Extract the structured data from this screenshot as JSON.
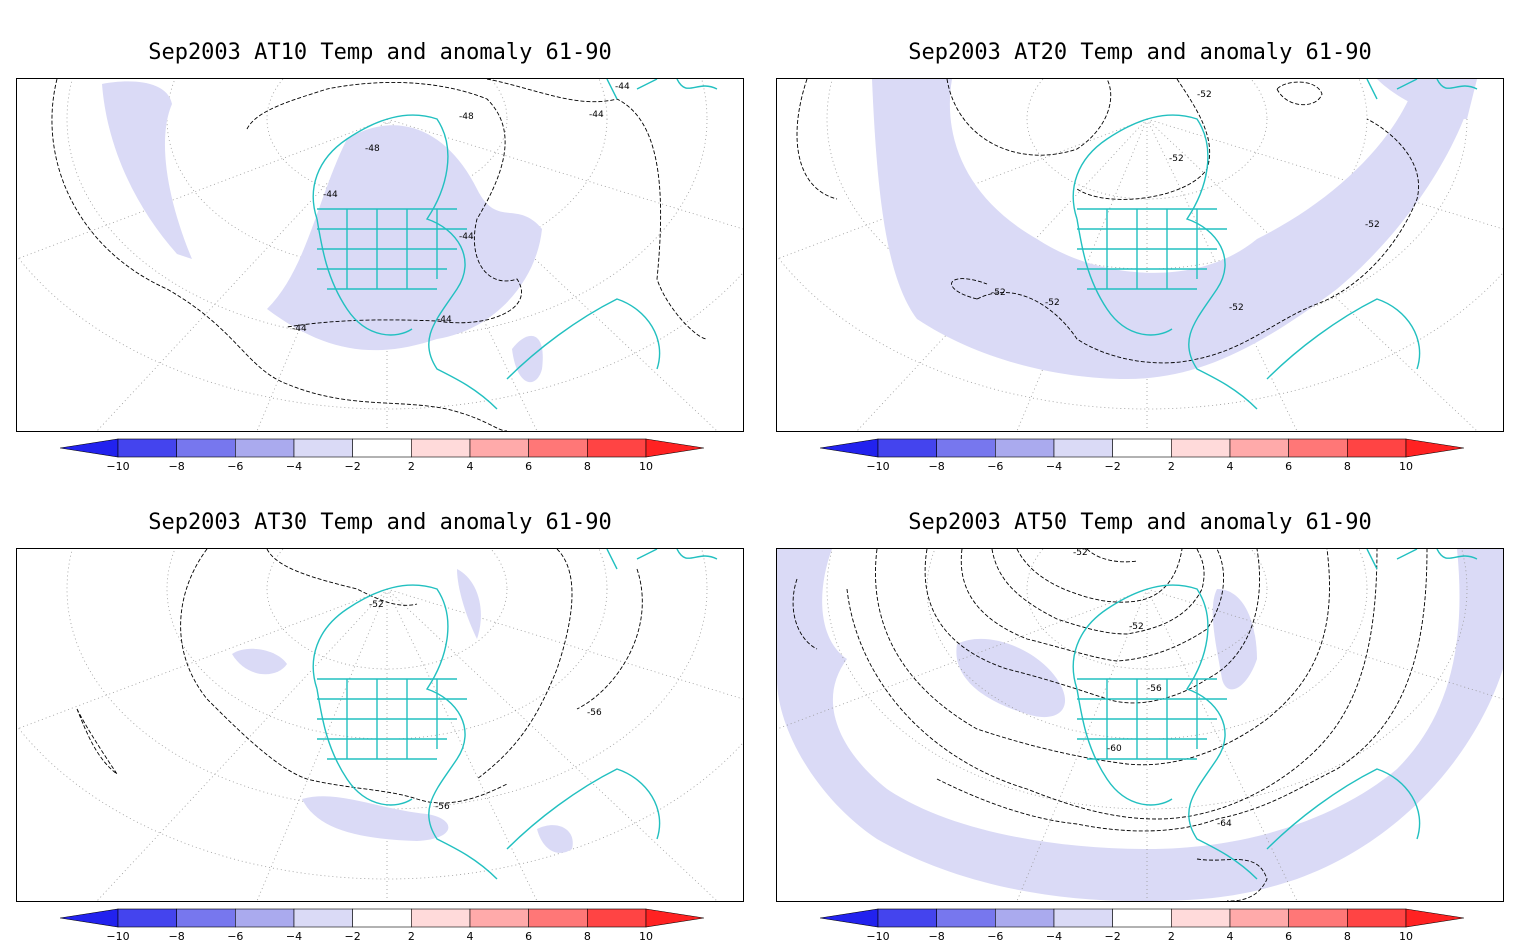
{
  "colorbar": {
    "ticks": [
      "−10",
      "−8",
      "−6",
      "−4",
      "−2",
      "2",
      "4",
      "6",
      "8",
      "10"
    ],
    "colors": [
      "#2222ee",
      "#4444ee",
      "#7777ee",
      "#aaaaee",
      "#dadaf6",
      "#ffffff",
      "#ffdada",
      "#ffaaaa",
      "#ff7777",
      "#ff4444",
      "#ff2222"
    ]
  },
  "panels": [
    {
      "title": "Sep2003 AT10 Temp and anomaly 61-90",
      "contour_labels": [
        "-48",
        "-48",
        "-44",
        "-44",
        "-44",
        "-44",
        "-44",
        "-44"
      ]
    },
    {
      "title": "Sep2003 AT20 Temp and anomaly 61-90",
      "contour_labels": [
        "-52",
        "-52",
        "-52",
        "-52",
        "-52",
        "-52"
      ]
    },
    {
      "title": "Sep2003 AT30 Temp and anomaly 61-90",
      "contour_labels": [
        "-52",
        "-56",
        "-56"
      ]
    },
    {
      "title": "Sep2003 AT50 Temp and anomaly 61-90",
      "contour_labels": [
        "-52",
        "-52",
        "-56",
        "-60",
        "-64"
      ]
    }
  ],
  "style": {
    "coast_color": "#22c0c0",
    "anomaly_fill": "#dadaf6",
    "contour_color": "#000000",
    "grid_color": "#999999"
  }
}
